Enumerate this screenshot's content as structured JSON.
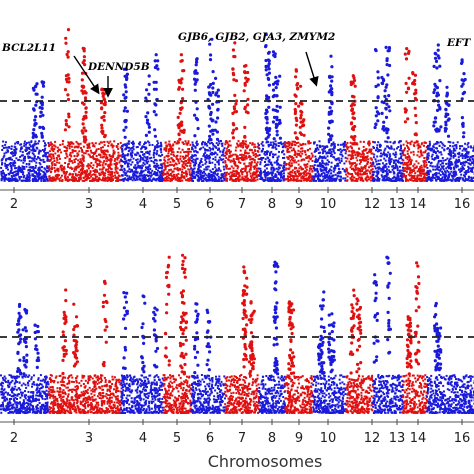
{
  "chart_data": [
    {
      "type": "scatter",
      "panel": "top",
      "categories": [
        "2",
        "3",
        "4",
        "5",
        "6",
        "7",
        "8",
        "9",
        "10",
        "12",
        "13",
        "14",
        "16"
      ],
      "colors": [
        "#1a1adb",
        "#e01010"
      ],
      "threshold_line": "dashed",
      "annotations": [
        "BCL2L11",
        "DENND5B",
        "GJB6, GJB2, GJA3, ZMYM2",
        "EFT"
      ]
    },
    {
      "type": "scatter",
      "panel": "bottom",
      "categories": [
        "2",
        "3",
        "4",
        "5",
        "6",
        "7",
        "8",
        "9",
        "10",
        "12",
        "13",
        "14",
        "16"
      ],
      "colors": [
        "#1a1adb",
        "#e01010"
      ],
      "threshold_line": "dashed",
      "xlabel": "Chromosomes"
    }
  ]
}
